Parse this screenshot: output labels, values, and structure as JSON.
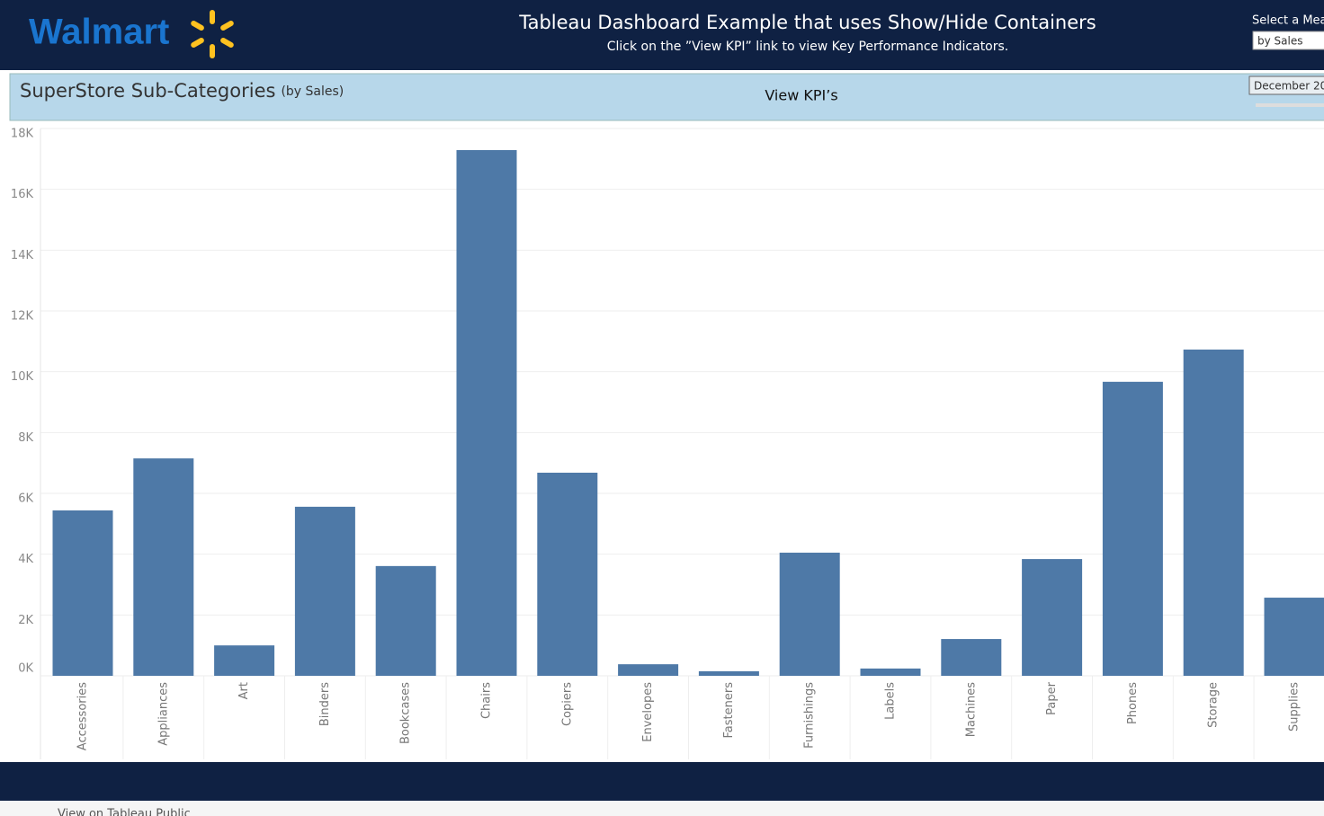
{
  "header": {
    "logo": "Walmart",
    "title": "Tableau Dashboard Example that uses Show/Hide Containers",
    "subtitle": "Click on the ”View KPI” link to view Key Performance Indicators.",
    "measure_label": "Select a Mea",
    "measure_value": "by Sales"
  },
  "panel": {
    "title": "SuperStore Sub-Categories",
    "title_note": "(by Sales)",
    "link": "View KPI’s",
    "date_filter": "December 20"
  },
  "chart_data": {
    "type": "bar",
    "categories": [
      "Accessories",
      "Appliances",
      "Art",
      "Binders",
      "Bookcases",
      "Chairs",
      "Copiers",
      "Envelopes",
      "Fasteners",
      "Furnishings",
      "Labels",
      "Machines",
      "Paper",
      "Phones",
      "Storage",
      "Supplies"
    ],
    "values": [
      5440,
      7150,
      1000,
      5560,
      3610,
      17290,
      6680,
      380,
      150,
      4050,
      240,
      1210,
      3840,
      9670,
      10730,
      2570
    ],
    "color": "#4e79a7",
    "ylim": [
      0,
      18000
    ],
    "yticks": [
      {
        "value": 0,
        "label": "0K"
      },
      {
        "value": 2000,
        "label": "2K"
      },
      {
        "value": 4000,
        "label": "4K"
      },
      {
        "value": 6000,
        "label": "6K"
      },
      {
        "value": 8000,
        "label": "8K"
      },
      {
        "value": 10000,
        "label": "10K"
      },
      {
        "value": 12000,
        "label": "12K"
      },
      {
        "value": 14000,
        "label": "14K"
      },
      {
        "value": 16000,
        "label": "16K"
      },
      {
        "value": 18000,
        "label": "18K"
      }
    ],
    "grid": true
  },
  "footer": {
    "link": "View on Tableau Public"
  }
}
